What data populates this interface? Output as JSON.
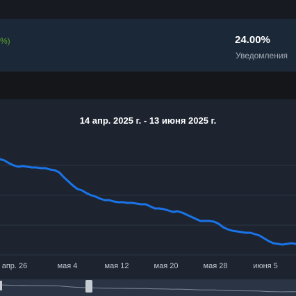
{
  "stats": {
    "change_text": "%)",
    "value": "24.00%",
    "label": "Уведомления"
  },
  "colors": {
    "line": "#1a74e8",
    "positive": "#5ba32b",
    "panel": "#1d2430",
    "grid": "#2b3442"
  },
  "chart_data": {
    "type": "line",
    "title": "14 апр. 2025 г. - 13 июня 2025 г.",
    "x_ticks": [
      "апр. 26",
      "мая 4",
      "мая 12",
      "мая 20",
      "мая 28",
      "июня 5"
    ],
    "y_ticks": [],
    "grid": true,
    "series": [
      {
        "values": [
          229,
          231,
          235,
          238,
          240,
          239,
          240,
          241,
          241,
          242,
          242,
          244,
          245,
          248,
          255,
          261,
          267,
          272,
          274,
          278,
          281,
          283,
          286,
          288,
          288,
          290,
          291,
          291,
          292,
          292,
          293,
          294,
          294,
          297,
          300,
          300,
          301,
          303,
          305,
          304,
          306,
          309,
          312,
          315,
          318,
          318,
          318,
          319,
          322,
          327,
          330,
          332,
          333,
          334,
          335,
          335,
          337,
          339,
          343,
          347,
          350,
          351,
          352,
          351,
          350,
          351
        ]
      }
    ]
  }
}
